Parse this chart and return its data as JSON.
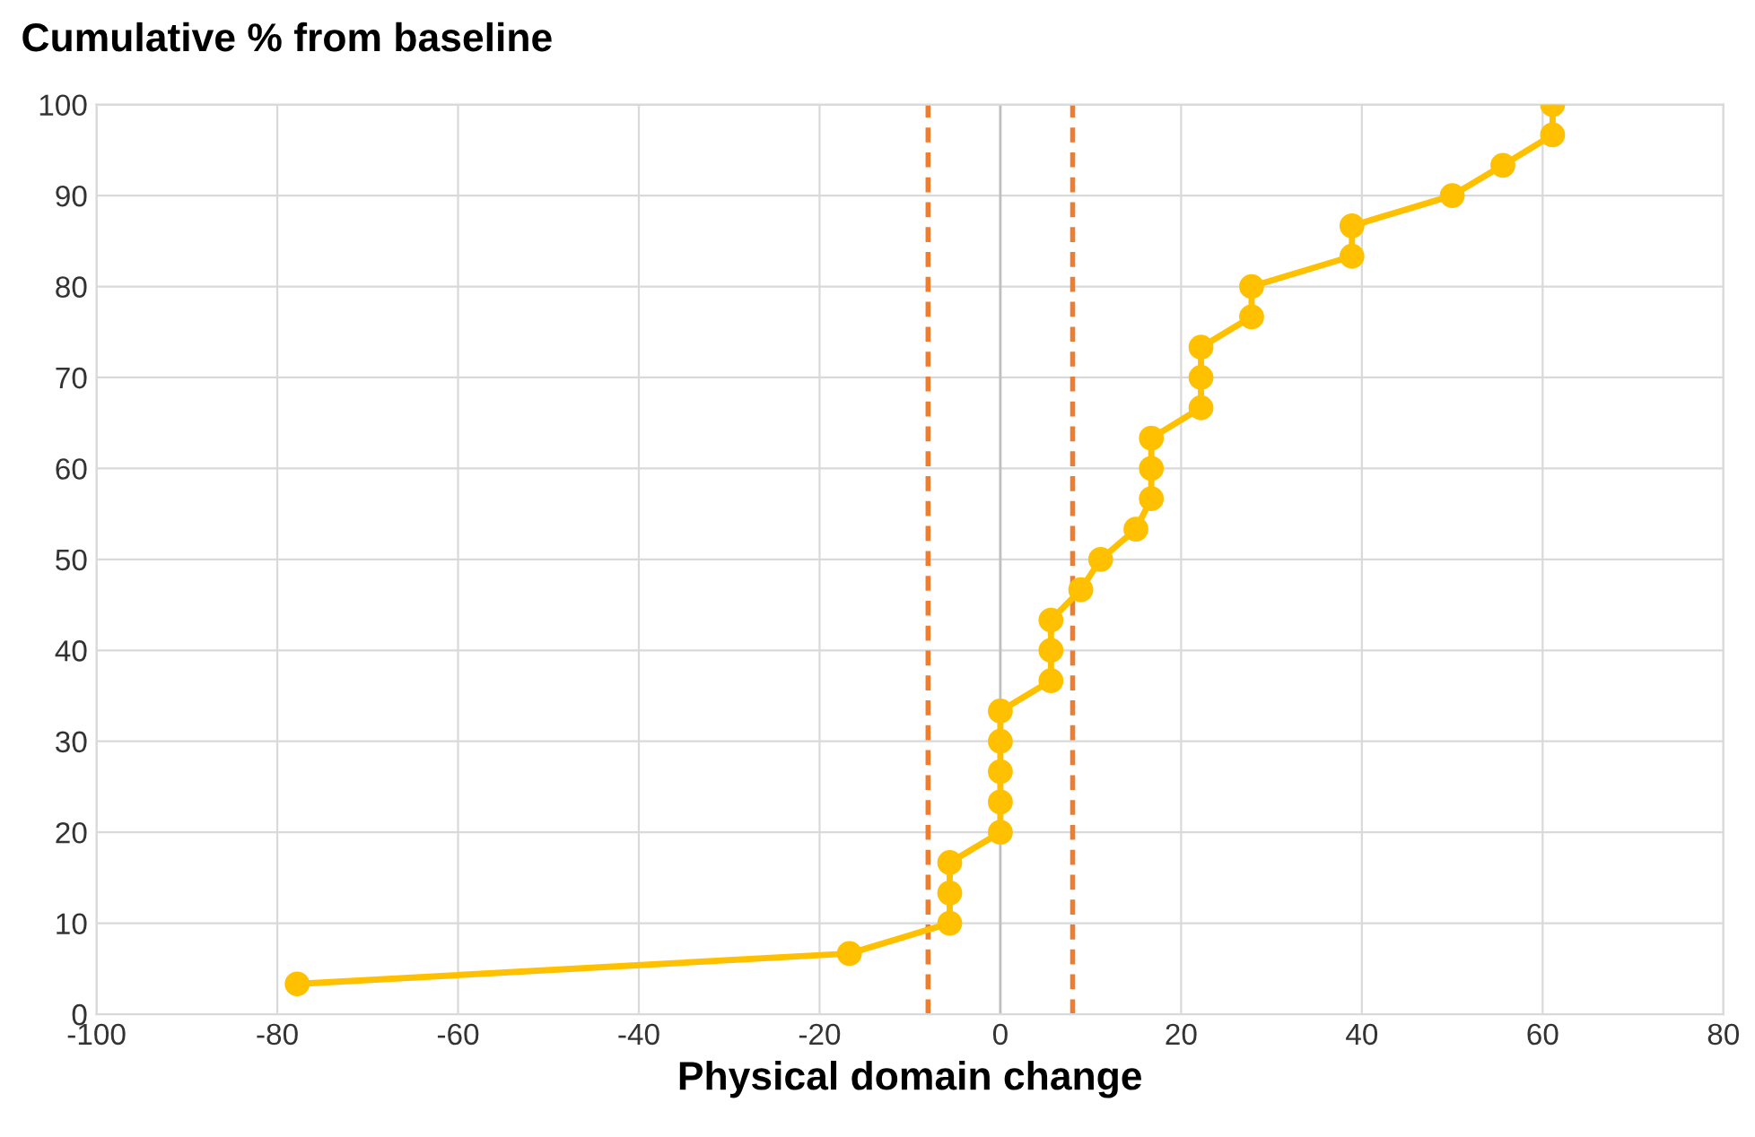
{
  "chart_data": {
    "type": "line",
    "title": "Cumulative % from baseline",
    "xlabel": "Physical domain change",
    "series": [
      {
        "color": "#ffc000",
        "marker": "circle",
        "line_style": "solid",
        "x": [
          -77.8,
          -16.7,
          -5.6,
          -5.6,
          -5.6,
          0,
          0,
          0,
          0,
          0,
          5.6,
          5.6,
          5.6,
          8.9,
          11.1,
          15,
          16.7,
          16.7,
          16.7,
          22.2,
          22.2,
          22.2,
          27.8,
          27.8,
          38.9,
          38.9,
          50,
          55.6,
          61.1,
          61.1
        ],
        "values": [
          3.33,
          6.67,
          10,
          13.33,
          16.67,
          20,
          23.33,
          26.67,
          30,
          33.33,
          36.67,
          40,
          43.33,
          46.67,
          50,
          53.33,
          56.67,
          60,
          63.33,
          66.67,
          70,
          73.33,
          76.67,
          80,
          83.33,
          86.67,
          90,
          93.33,
          96.67,
          100
        ]
      }
    ],
    "xlim": [
      -100,
      80
    ],
    "xticks": [
      -100,
      -80,
      -60,
      -40,
      -20,
      0,
      20,
      40,
      60,
      80
    ],
    "ylim": [
      0,
      100
    ],
    "yticks": [
      0,
      10,
      20,
      30,
      40,
      50,
      60,
      70,
      80,
      90,
      100
    ],
    "ref_lines": [
      {
        "axis": "x",
        "value": -8,
        "color": "#ed7d31",
        "line_style": "dashed"
      },
      {
        "axis": "x",
        "value": 8,
        "color": "#ed7d31",
        "line_style": "dashed"
      }
    ],
    "grid": true,
    "legend": false
  }
}
